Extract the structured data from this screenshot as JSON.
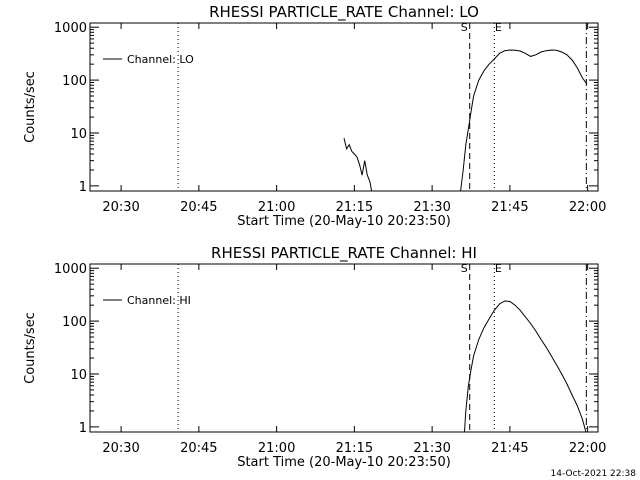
{
  "chart_data": [
    {
      "type": "line",
      "title": "RHESSI PARTICLE_RATE Channel: LO",
      "xlabel": "Start Time (20-May-10 20:23:50)",
      "ylabel": "Counts/sec",
      "x_ticks": [
        "20:30",
        "20:45",
        "21:00",
        "21:15",
        "21:30",
        "21:45",
        "22:00"
      ],
      "y_ticks": [
        "1",
        "10",
        "100",
        "1000"
      ],
      "y_scale": "log",
      "xlim": [
        "20:24",
        "22:02"
      ],
      "ylim": [
        0.8,
        1200
      ],
      "legend_position": "top-left",
      "markers": {
        "start": "S",
        "end": "E"
      },
      "series": [
        {
          "name": "Channel: LO",
          "segments": [
            [
              [
                "21:13:00",
                8
              ],
              [
                "21:13:30",
                5
              ],
              [
                "21:14:00",
                6
              ],
              [
                "21:14:30",
                4.5
              ],
              [
                "21:15:00",
                4
              ],
              [
                "21:15:30",
                3.5
              ],
              [
                "21:16:00",
                2.5
              ],
              [
                "21:16:30",
                1.6
              ],
              [
                "21:17:00",
                3
              ],
              [
                "21:17:30",
                1.6
              ],
              [
                "21:18:00",
                1.2
              ],
              [
                "21:18:20",
                0.8
              ]
            ],
            [
              [
                "21:35:30",
                0.8
              ],
              [
                "21:36:00",
                2
              ],
              [
                "21:36:30",
                6
              ],
              [
                "21:37:00",
                12
              ],
              [
                "21:37:30",
                25
              ],
              [
                "21:38:00",
                50
              ],
              [
                "21:39:00",
                100
              ],
              [
                "21:40:00",
                150
              ],
              [
                "21:41:00",
                200
              ],
              [
                "21:42:00",
                250
              ],
              [
                "21:43:00",
                320
              ],
              [
                "21:44:00",
                360
              ],
              [
                "21:45:00",
                370
              ],
              [
                "21:46:00",
                365
              ],
              [
                "21:47:00",
                355
              ],
              [
                "21:48:00",
                320
              ],
              [
                "21:49:00",
                280
              ],
              [
                "21:50:00",
                300
              ],
              [
                "21:51:00",
                340
              ],
              [
                "21:52:00",
                360
              ],
              [
                "21:53:00",
                370
              ],
              [
                "21:54:00",
                365
              ],
              [
                "21:55:00",
                340
              ],
              [
                "21:56:00",
                300
              ],
              [
                "21:57:00",
                240
              ],
              [
                "21:58:00",
                170
              ],
              [
                "21:59:00",
                110
              ],
              [
                "21:59:50",
                85
              ]
            ]
          ]
        }
      ],
      "vlines": [
        {
          "x": "20:41:00",
          "style": "dotted"
        },
        {
          "x": "21:37:15",
          "style": "dashed"
        },
        {
          "x": "21:42:00",
          "style": "dotted"
        },
        {
          "x": "21:59:45",
          "style": "dashdot"
        }
      ]
    },
    {
      "type": "line",
      "title": "RHESSI PARTICLE_RATE Channel: HI",
      "xlabel": "Start Time (20-May-10 20:23:50)",
      "ylabel": "Counts/sec",
      "x_ticks": [
        "20:30",
        "20:45",
        "21:00",
        "21:15",
        "21:30",
        "21:45",
        "22:00"
      ],
      "y_ticks": [
        "1",
        "10",
        "100",
        "1000"
      ],
      "y_scale": "log",
      "xlim": [
        "20:24",
        "22:02"
      ],
      "ylim": [
        0.8,
        1200
      ],
      "legend_position": "top-left",
      "markers": {
        "start": "S",
        "end": "E"
      },
      "series": [
        {
          "name": "Channel: HI",
          "segments": [
            [
              [
                "21:36:15",
                0.8
              ],
              [
                "21:36:30",
                2
              ],
              [
                "21:37:00",
                6
              ],
              [
                "21:37:30",
                12
              ],
              [
                "21:38:00",
                22
              ],
              [
                "21:39:00",
                45
              ],
              [
                "21:40:00",
                75
              ],
              [
                "21:41:00",
                110
              ],
              [
                "21:42:00",
                160
              ],
              [
                "21:43:00",
                210
              ],
              [
                "21:44:00",
                240
              ],
              [
                "21:45:00",
                235
              ],
              [
                "21:46:00",
                200
              ],
              [
                "21:47:00",
                160
              ],
              [
                "21:48:00",
                120
              ],
              [
                "21:49:00",
                90
              ],
              [
                "21:50:00",
                65
              ],
              [
                "21:51:00",
                45
              ],
              [
                "21:52:00",
                32
              ],
              [
                "21:53:00",
                22
              ],
              [
                "21:54:00",
                15
              ],
              [
                "21:55:00",
                10
              ],
              [
                "21:56:00",
                6.5
              ],
              [
                "21:57:00",
                4
              ],
              [
                "21:58:00",
                2.5
              ],
              [
                "21:59:00",
                1.4
              ],
              [
                "21:59:40",
                0.8
              ]
            ]
          ]
        }
      ],
      "vlines": [
        {
          "x": "20:41:00",
          "style": "dotted"
        },
        {
          "x": "21:37:15",
          "style": "dashed"
        },
        {
          "x": "21:42:00",
          "style": "dotted"
        },
        {
          "x": "21:59:45",
          "style": "dashdot"
        }
      ]
    }
  ],
  "footer": {
    "date": "14-Oct-2021 22:38"
  }
}
